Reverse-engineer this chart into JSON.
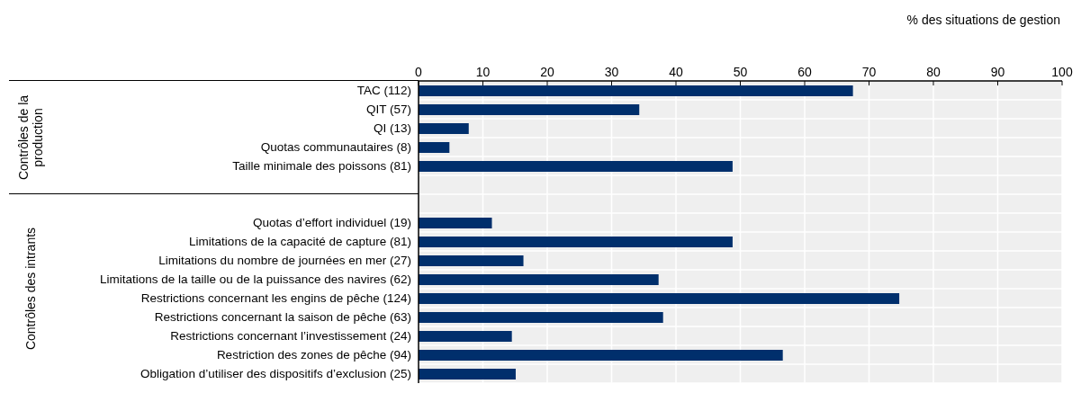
{
  "chart_data": {
    "type": "bar",
    "orientation": "horizontal",
    "xlabel": "% des situations de gestion",
    "categories": [
      "TAC (112)",
      "QIT (57)",
      "QI (13)",
      "Quotas communautaires (8)",
      "Taille minimale des poissons (81)",
      null,
      null,
      "Quotas d’effort individuel (19)",
      "Limitations de la capacité de capture (81)",
      "Limitations du nombre de journées en mer (27)",
      "Limitations de la taille ou de la puissance des navires (62)",
      "Restrictions concernant les engins de pêche (124)",
      "Restrictions concernant la saison de pêche (63)",
      "Restrictions concernant l’investissement (24)",
      "Restriction des zones de pêche (94)",
      "Obligation d’utiliser des dispositifs d’exclusion (25)"
    ],
    "values": [
      67.5,
      34.3,
      7.8,
      4.8,
      48.8,
      null,
      null,
      11.4,
      48.8,
      16.3,
      37.3,
      74.7,
      38.0,
      14.5,
      56.6,
      15.1
    ],
    "color": "#002f6c",
    "xlim": [
      0,
      100
    ],
    "xticks": [
      0,
      10,
      20,
      30,
      40,
      50,
      60,
      70,
      80,
      90,
      100
    ],
    "grid": true,
    "annotations": [
      "Contrôles de la production",
      "Contrôles des intrants"
    ]
  }
}
